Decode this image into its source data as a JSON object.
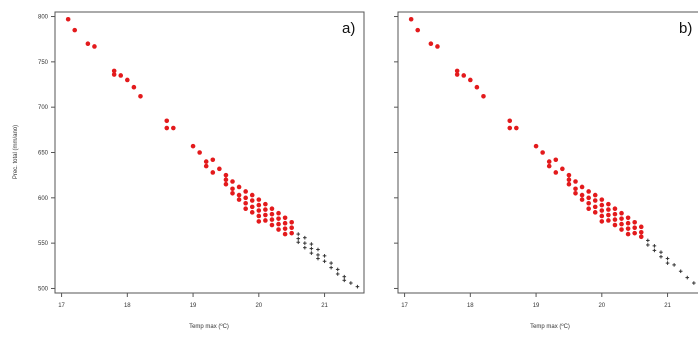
{
  "chart_data": [
    {
      "type": "scatter",
      "panel_label": "a)",
      "xlabel": "Temp max (ºC)",
      "ylabel": "Prec. total (mm/ano)",
      "xlim": [
        16.9,
        21.6
      ],
      "ylim": [
        495,
        805
      ],
      "x_ticks": [
        "17",
        "18",
        "19",
        "20",
        "21"
      ],
      "y_ticks": [
        "500",
        "550",
        "600",
        "650",
        "700",
        "750",
        "800"
      ],
      "series": [
        {
          "color": "#e31a1c",
          "marker": "circle",
          "points": [
            [
              17.1,
              797
            ],
            [
              17.2,
              785
            ],
            [
              17.4,
              770
            ],
            [
              17.5,
              767
            ],
            [
              17.8,
              740
            ],
            [
              17.8,
              736
            ],
            [
              17.9,
              735
            ],
            [
              18.0,
              730
            ],
            [
              18.1,
              722
            ],
            [
              18.2,
              712
            ],
            [
              18.6,
              685
            ],
            [
              18.6,
              677
            ],
            [
              18.7,
              677
            ],
            [
              19.0,
              657
            ],
            [
              19.1,
              650
            ],
            [
              19.2,
              640
            ],
            [
              19.2,
              635
            ],
            [
              19.3,
              642
            ],
            [
              19.3,
              628
            ],
            [
              19.4,
              632
            ],
            [
              19.5,
              620
            ],
            [
              19.5,
              625
            ],
            [
              19.5,
              615
            ],
            [
              19.6,
              618
            ],
            [
              19.6,
              610
            ],
            [
              19.6,
              605
            ],
            [
              19.7,
              612
            ],
            [
              19.7,
              603
            ],
            [
              19.7,
              598
            ],
            [
              19.8,
              607
            ],
            [
              19.8,
              600
            ],
            [
              19.8,
              594
            ],
            [
              19.8,
              588
            ],
            [
              19.9,
              603
            ],
            [
              19.9,
              597
            ],
            [
              19.9,
              590
            ],
            [
              19.9,
              584
            ],
            [
              20.0,
              598
            ],
            [
              20.0,
              592
            ],
            [
              20.0,
              586
            ],
            [
              20.0,
              580
            ],
            [
              20.0,
              574
            ],
            [
              20.1,
              593
            ],
            [
              20.1,
              587
            ],
            [
              20.1,
              581
            ],
            [
              20.1,
              575
            ],
            [
              20.2,
              588
            ],
            [
              20.2,
              582
            ],
            [
              20.2,
              576
            ],
            [
              20.2,
              570
            ],
            [
              20.3,
              583
            ],
            [
              20.3,
              577
            ],
            [
              20.3,
              571
            ],
            [
              20.3,
              565
            ],
            [
              20.4,
              578
            ],
            [
              20.4,
              572
            ],
            [
              20.4,
              566
            ],
            [
              20.4,
              560
            ],
            [
              20.5,
              573
            ],
            [
              20.5,
              567
            ],
            [
              20.5,
              561
            ]
          ]
        },
        {
          "color": "#333333",
          "marker": "plus",
          "points": [
            [
              20.6,
              560
            ],
            [
              20.6,
              555
            ],
            [
              20.6,
              551
            ],
            [
              20.7,
              556
            ],
            [
              20.7,
              550
            ],
            [
              20.7,
              545
            ],
            [
              20.8,
              549
            ],
            [
              20.8,
              544
            ],
            [
              20.8,
              539
            ],
            [
              20.9,
              543
            ],
            [
              20.9,
              537
            ],
            [
              20.9,
              533
            ],
            [
              21.0,
              536
            ],
            [
              21.0,
              530
            ],
            [
              21.1,
              528
            ],
            [
              21.1,
              523
            ],
            [
              21.2,
              521
            ],
            [
              21.2,
              516
            ],
            [
              21.3,
              513
            ],
            [
              21.3,
              509
            ],
            [
              21.4,
              506
            ],
            [
              21.5,
              502
            ]
          ]
        }
      ]
    },
    {
      "type": "scatter",
      "panel_label": "b)",
      "xlabel": "Temp max (ºC)",
      "ylabel": "",
      "xlim": [
        16.9,
        21.6
      ],
      "ylim": [
        495,
        805
      ],
      "x_ticks": [
        "17",
        "18",
        "19",
        "20",
        "21"
      ],
      "y_ticks": [],
      "series": [
        {
          "color": "#e31a1c",
          "marker": "circle",
          "points": [
            [
              17.1,
              797
            ],
            [
              17.2,
              785
            ],
            [
              17.4,
              770
            ],
            [
              17.5,
              767
            ],
            [
              17.8,
              740
            ],
            [
              17.8,
              736
            ],
            [
              17.9,
              735
            ],
            [
              18.0,
              730
            ],
            [
              18.1,
              722
            ],
            [
              18.2,
              712
            ],
            [
              18.6,
              685
            ],
            [
              18.6,
              677
            ],
            [
              18.7,
              677
            ],
            [
              19.0,
              657
            ],
            [
              19.1,
              650
            ],
            [
              19.2,
              640
            ],
            [
              19.2,
              635
            ],
            [
              19.3,
              642
            ],
            [
              19.3,
              628
            ],
            [
              19.4,
              632
            ],
            [
              19.5,
              620
            ],
            [
              19.5,
              625
            ],
            [
              19.5,
              615
            ],
            [
              19.6,
              618
            ],
            [
              19.6,
              610
            ],
            [
              19.6,
              605
            ],
            [
              19.7,
              612
            ],
            [
              19.7,
              603
            ],
            [
              19.7,
              598
            ],
            [
              19.8,
              607
            ],
            [
              19.8,
              600
            ],
            [
              19.8,
              594
            ],
            [
              19.8,
              588
            ],
            [
              19.9,
              603
            ],
            [
              19.9,
              597
            ],
            [
              19.9,
              590
            ],
            [
              19.9,
              584
            ],
            [
              20.0,
              598
            ],
            [
              20.0,
              592
            ],
            [
              20.0,
              586
            ],
            [
              20.0,
              580
            ],
            [
              20.0,
              574
            ],
            [
              20.1,
              593
            ],
            [
              20.1,
              587
            ],
            [
              20.1,
              581
            ],
            [
              20.1,
              575
            ],
            [
              20.2,
              588
            ],
            [
              20.2,
              582
            ],
            [
              20.2,
              576
            ],
            [
              20.2,
              570
            ],
            [
              20.3,
              583
            ],
            [
              20.3,
              577
            ],
            [
              20.3,
              571
            ],
            [
              20.3,
              565
            ],
            [
              20.4,
              578
            ],
            [
              20.4,
              572
            ],
            [
              20.4,
              566
            ],
            [
              20.4,
              560
            ],
            [
              20.5,
              573
            ],
            [
              20.5,
              567
            ],
            [
              20.5,
              561
            ],
            [
              20.6,
              568
            ],
            [
              20.6,
              562
            ],
            [
              20.6,
              557
            ]
          ]
        },
        {
          "color": "#333333",
          "marker": "plus",
          "points": [
            [
              20.7,
              553
            ],
            [
              20.7,
              548
            ],
            [
              20.8,
              547
            ],
            [
              20.8,
              542
            ],
            [
              20.9,
              540
            ],
            [
              20.9,
              535
            ],
            [
              21.0,
              533
            ],
            [
              21.0,
              528
            ],
            [
              21.1,
              526
            ],
            [
              21.2,
              519
            ],
            [
              21.3,
              512
            ],
            [
              21.4,
              506
            ],
            [
              21.5,
              502
            ]
          ]
        }
      ]
    }
  ]
}
